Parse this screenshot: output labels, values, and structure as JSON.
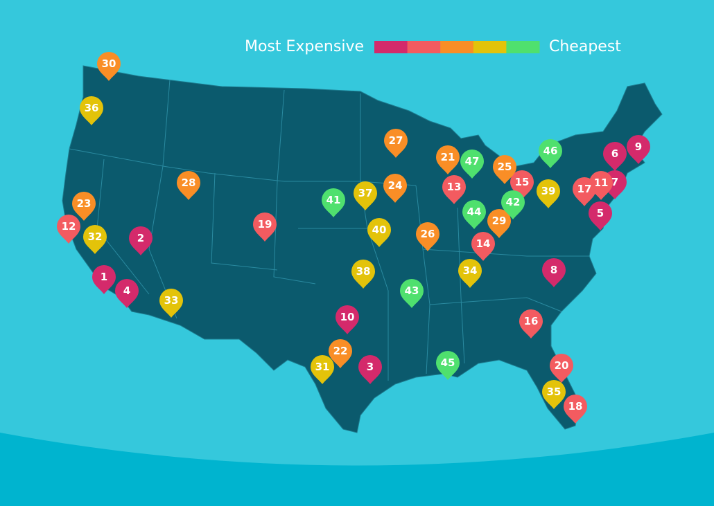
{
  "legend": {
    "high_label": "Most Expensive",
    "low_label": "Cheapest",
    "colors": [
      "#d42a6b",
      "#f35b60",
      "#f98e26",
      "#e3c30a",
      "#4fe06e"
    ]
  },
  "pins": [
    {
      "label": 1,
      "color": "#d42a6b"
    },
    {
      "label": 2,
      "color": "#d42a6b"
    },
    {
      "label": 3,
      "color": "#d42a6b"
    },
    {
      "label": 4,
      "color": "#d42a6b"
    },
    {
      "label": 5,
      "color": "#d42a6b"
    },
    {
      "label": 6,
      "color": "#d42a6b"
    },
    {
      "label": 7,
      "color": "#d42a6b"
    },
    {
      "label": 8,
      "color": "#d42a6b"
    },
    {
      "label": 9,
      "color": "#d42a6b"
    },
    {
      "label": 10,
      "color": "#d42a6b"
    },
    {
      "label": 11,
      "color": "#f35b60"
    },
    {
      "label": 12,
      "color": "#f35b60"
    },
    {
      "label": 13,
      "color": "#f35b60"
    },
    {
      "label": 14,
      "color": "#f35b60"
    },
    {
      "label": 15,
      "color": "#f35b60"
    },
    {
      "label": 16,
      "color": "#f35b60"
    },
    {
      "label": 17,
      "color": "#f35b60"
    },
    {
      "label": 18,
      "color": "#f35b60"
    },
    {
      "label": 19,
      "color": "#f35b60"
    },
    {
      "label": 20,
      "color": "#f35b60"
    },
    {
      "label": 21,
      "color": "#f98e26"
    },
    {
      "label": 22,
      "color": "#f98e26"
    },
    {
      "label": 23,
      "color": "#f98e26"
    },
    {
      "label": 24,
      "color": "#f98e26"
    },
    {
      "label": 25,
      "color": "#f98e26"
    },
    {
      "label": 26,
      "color": "#f98e26"
    },
    {
      "label": 27,
      "color": "#f98e26"
    },
    {
      "label": 28,
      "color": "#f98e26"
    },
    {
      "label": 29,
      "color": "#f98e26"
    },
    {
      "label": 30,
      "color": "#f98e26"
    },
    {
      "label": 31,
      "color": "#e3c30a"
    },
    {
      "label": 32,
      "color": "#e3c30a"
    },
    {
      "label": 33,
      "color": "#e3c30a"
    },
    {
      "label": 34,
      "color": "#e3c30a"
    },
    {
      "label": 35,
      "color": "#e3c30a"
    },
    {
      "label": 36,
      "color": "#e3c30a"
    },
    {
      "label": 37,
      "color": "#e3c30a"
    },
    {
      "label": 38,
      "color": "#e3c30a"
    },
    {
      "label": 39,
      "color": "#e3c30a"
    },
    {
      "label": 40,
      "color": "#e3c30a"
    },
    {
      "label": 41,
      "color": "#4fe06e"
    },
    {
      "label": 42,
      "color": "#4fe06e"
    },
    {
      "label": 43,
      "color": "#4fe06e"
    },
    {
      "label": 44,
      "color": "#4fe06e"
    },
    {
      "label": 45,
      "color": "#4fe06e"
    },
    {
      "label": 46,
      "color": "#4fe06e"
    },
    {
      "label": 47,
      "color": "#4fe06e"
    }
  ]
}
